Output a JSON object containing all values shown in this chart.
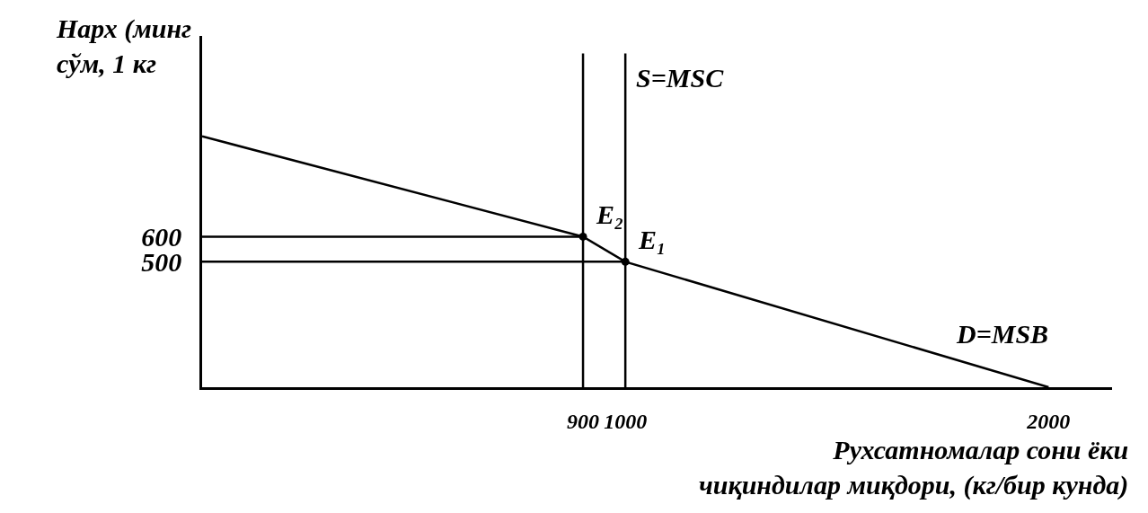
{
  "chart_data": {
    "type": "line",
    "ylabel": "Нарх (минг сўм, 1 кг",
    "xlabel": "Рухсатномалар сони ёки чиқиндилар миқдори, (кг/бир кунда)",
    "series": [
      {
        "x": [
          0,
          900,
          1000,
          2000
        ],
        "values": [
          1000,
          600,
          500,
          0
        ],
        "color": "#000000"
      },
      {
        "x": [
          0,
          900
        ],
        "values": [
          600,
          600
        ],
        "color": "#000000"
      },
      {
        "x": [
          0,
          1000
        ],
        "values": [
          500,
          500
        ],
        "color": "#000000"
      },
      {
        "type": "scatter",
        "x": [
          900,
          1000
        ],
        "values": [
          600,
          500
        ],
        "color": "#000000"
      }
    ],
    "ref_lines": [
      {
        "axis": "x",
        "value": 900,
        "color": "#000000"
      },
      {
        "axis": "x",
        "value": 1000,
        "label": "S=MSC",
        "color": "#000000"
      }
    ],
    "annotations": [
      {
        "text": "E₂",
        "x": 900,
        "y": 600
      },
      {
        "text": "E₁",
        "x": 1000,
        "y": 500
      },
      {
        "text": "D=MSB",
        "x": 1750,
        "y": 125
      }
    ],
    "xlim": [
      0,
      2150
    ],
    "ylim": [
      0,
      1400
    ],
    "xticks": [
      900,
      1000,
      2000
    ],
    "yticks": [
      500,
      600
    ],
    "grid": false
  }
}
